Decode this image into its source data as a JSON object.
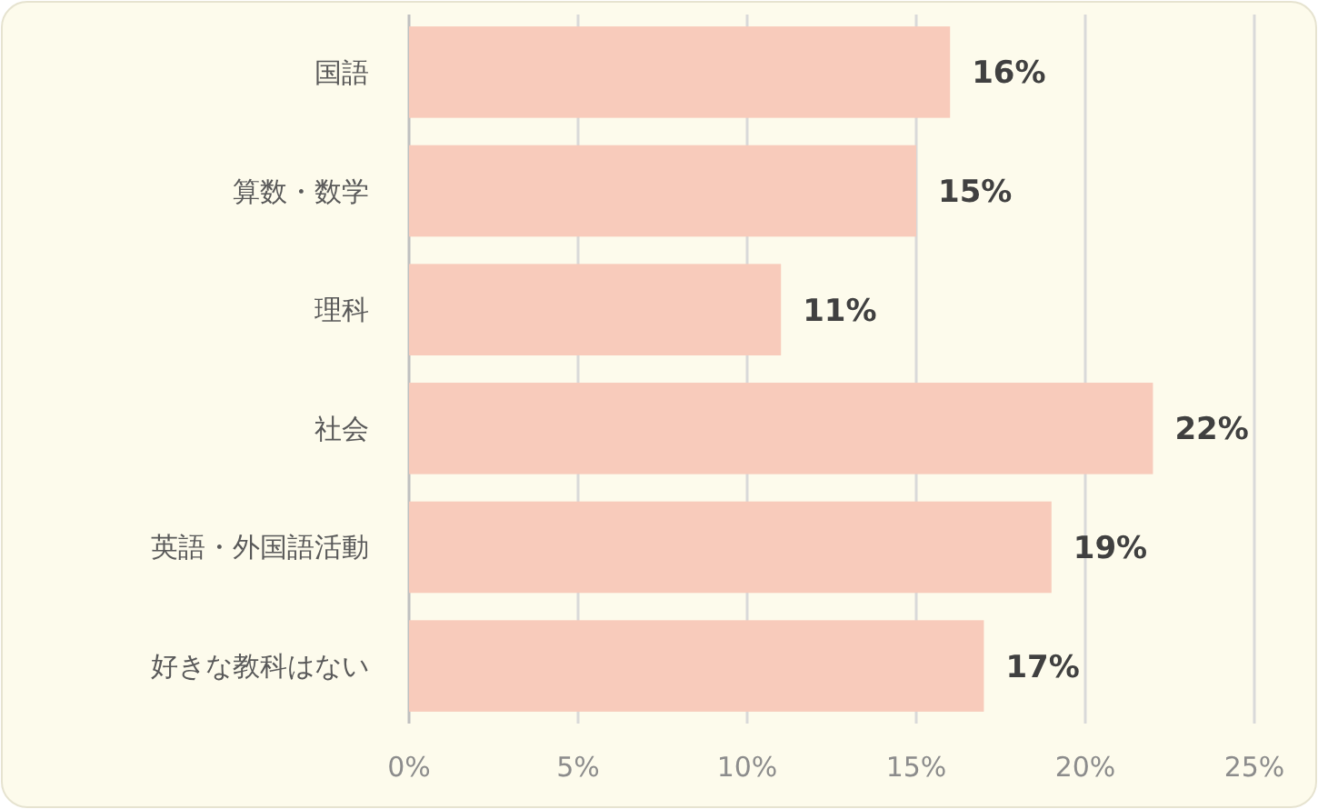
{
  "chart_data": {
    "type": "bar",
    "orientation": "horizontal",
    "categories": [
      "国語",
      "算数・数学",
      "理科",
      "社会",
      "英語・外国語活動",
      "好きな教科はない"
    ],
    "values": [
      16,
      15,
      11,
      22,
      19,
      17
    ],
    "color": "#f8cbbb",
    "value_labels": [
      "16%",
      "15%",
      "11%",
      "22%",
      "19%",
      "17%"
    ],
    "xlim": [
      0,
      25
    ],
    "xticks": [
      {
        "value": 0,
        "label": "0%"
      },
      {
        "value": 5,
        "label": "5%"
      },
      {
        "value": 10,
        "label": "10%"
      },
      {
        "value": 15,
        "label": "15%"
      },
      {
        "value": 20,
        "label": "20%"
      },
      {
        "value": 25,
        "label": "25%"
      }
    ],
    "grid": "x"
  }
}
